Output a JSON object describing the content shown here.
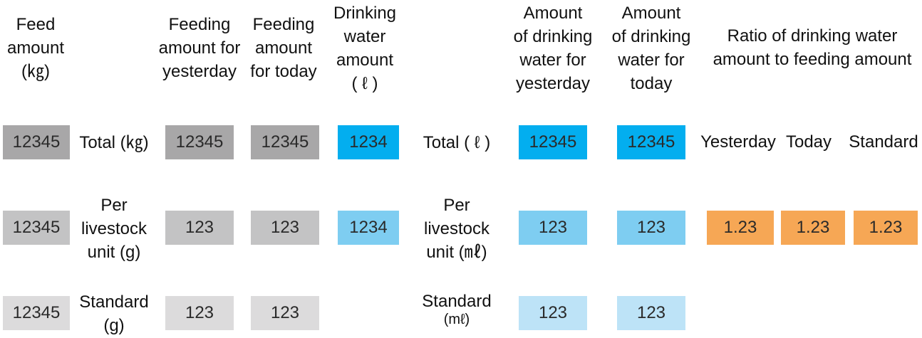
{
  "headers": {
    "feed_amount": "Feed\namount\n(㎏)",
    "feeding_yesterday": "Feeding\namount for\nyesterday",
    "feeding_today": "Feeding\namount\nfor today",
    "drinking_water": "Drinking\nwater\namount\n( ℓ )",
    "water_yesterday": "Amount\nof drinking\nwater for\nyesterday",
    "water_today": "Amount\nof drinking\nwater for\ntoday",
    "ratio": "Ratio of drinking water\namount to feeding amount"
  },
  "rows": {
    "total": {
      "feed_amount": "12345",
      "feed_label": "Total (㎏)",
      "feeding_yesterday": "12345",
      "feeding_today": "12345",
      "drinking_water": "1234",
      "water_label": "Total ( ℓ )",
      "water_yesterday": "12345",
      "water_today": "12345",
      "ratio_yesterday_label": "Yesterday",
      "ratio_today_label": "Today",
      "ratio_standard_label": "Standard"
    },
    "per_unit": {
      "feed_amount": "12345",
      "feed_label": "Per\nlivestock\nunit (g)",
      "feeding_yesterday": "123",
      "feeding_today": "123",
      "drinking_water": "1234",
      "water_label": "Per\nlivestock\nunit (㎖)",
      "water_yesterday": "123",
      "water_today": "123",
      "ratio_yesterday": "1.23",
      "ratio_today": "1.23",
      "ratio_standard": "1.23"
    },
    "standard": {
      "feed_amount": "12345",
      "feed_label": "Standard\n(g)",
      "feeding_yesterday": "123",
      "feeding_today": "123",
      "water_label_main": "Standard",
      "water_label_unit": "(mℓ)",
      "water_yesterday": "123",
      "water_today": "123"
    }
  },
  "colors": {
    "gray_dark": "#a8a7a8",
    "gray_mid": "#c3c3c4",
    "gray_light": "#dcdbdc",
    "blue_dark": "#03aeef",
    "blue_mid": "#7ecdf1",
    "blue_light": "#bde3f7",
    "orange": "#f6a755"
  }
}
